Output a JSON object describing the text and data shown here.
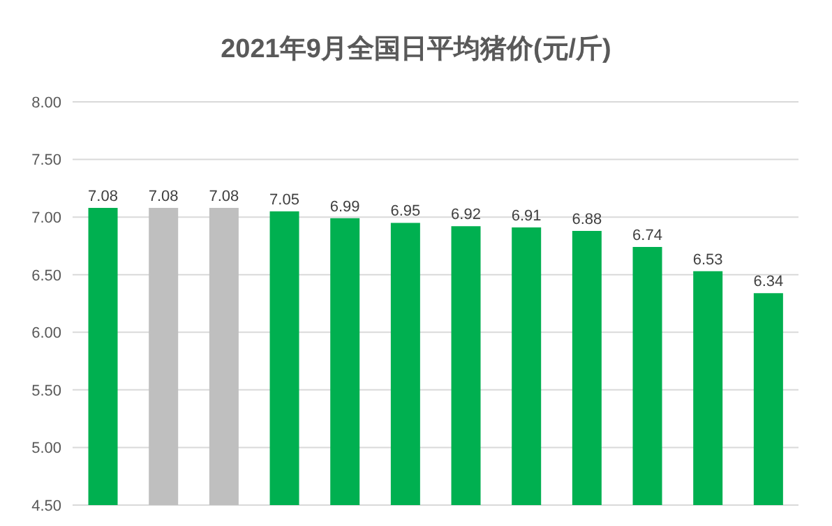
{
  "chart_data": {
    "type": "bar",
    "title": "2021年9月全国日平均猪价(元/斤)",
    "categories": [
      null,
      null,
      null,
      null,
      null,
      null,
      null,
      null,
      null,
      null,
      null,
      null
    ],
    "values": [
      7.08,
      7.08,
      7.08,
      7.05,
      6.99,
      6.95,
      6.92,
      6.91,
      6.88,
      6.74,
      6.53,
      6.34
    ],
    "colors": [
      "#00b050",
      "#bfbfbf",
      "#bfbfbf",
      "#00b050",
      "#00b050",
      "#00b050",
      "#00b050",
      "#00b050",
      "#00b050",
      "#00b050",
      "#00b050",
      "#00b050"
    ],
    "ylim": [
      4.5,
      8
    ],
    "yticks": [
      {
        "value": 4.5,
        "label": "4.50"
      },
      {
        "value": 5,
        "label": "5.00"
      },
      {
        "value": 5.5,
        "label": "5.50"
      },
      {
        "value": 6,
        "label": "6.00"
      },
      {
        "value": 6.5,
        "label": "6.50"
      },
      {
        "value": 7,
        "label": "7.00"
      },
      {
        "value": 7.5,
        "label": "7.50"
      },
      {
        "value": 8,
        "label": "8.00"
      }
    ],
    "grid": "y",
    "data_labels": true
  }
}
